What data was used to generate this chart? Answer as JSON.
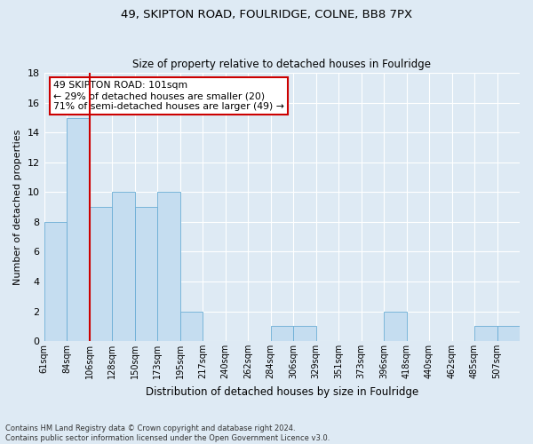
{
  "title": "49, SKIPTON ROAD, FOULRIDGE, COLNE, BB8 7PX",
  "subtitle": "Size of property relative to detached houses in Foulridge",
  "xlabel": "Distribution of detached houses by size in Foulridge",
  "ylabel": "Number of detached properties",
  "bin_labels": [
    "61sqm",
    "84sqm",
    "106sqm",
    "128sqm",
    "150sqm",
    "173sqm",
    "195sqm",
    "217sqm",
    "240sqm",
    "262sqm",
    "284sqm",
    "306sqm",
    "329sqm",
    "351sqm",
    "373sqm",
    "396sqm",
    "418sqm",
    "440sqm",
    "462sqm",
    "485sqm",
    "507sqm"
  ],
  "bar_heights": [
    8,
    15,
    9,
    10,
    9,
    10,
    2,
    0,
    0,
    0,
    1,
    1,
    0,
    0,
    0,
    2,
    0,
    0,
    0,
    1,
    1
  ],
  "bar_color": "#c5ddf0",
  "bar_edge_color": "#6aadd5",
  "marker_bin": 2,
  "marker_color": "#cc0000",
  "annotation_text": "49 SKIPTON ROAD: 101sqm\n← 29% of detached houses are smaller (20)\n71% of semi-detached houses are larger (49) →",
  "annotation_box_color": "#ffffff",
  "annotation_box_edge": "#cc0000",
  "ylim": [
    0,
    18
  ],
  "yticks": [
    0,
    2,
    4,
    6,
    8,
    10,
    12,
    14,
    16,
    18
  ],
  "footer_line1": "Contains HM Land Registry data © Crown copyright and database right 2024.",
  "footer_line2": "Contains public sector information licensed under the Open Government Licence v3.0.",
  "background_color": "#deeaf4",
  "grid_color": "#ffffff"
}
